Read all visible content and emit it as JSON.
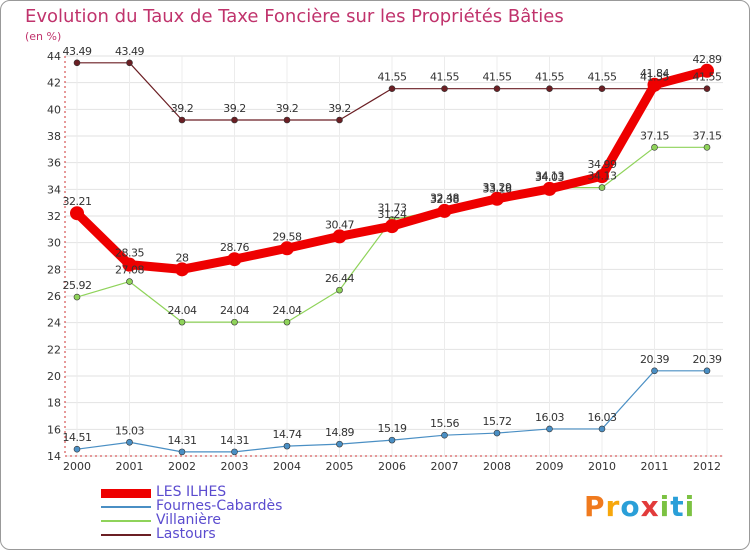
{
  "title": "Evolution du Taux de Taxe Foncière sur les Propriétés Bâties",
  "unit": "(en %)",
  "logo": {
    "letters": [
      "P",
      "r",
      "o",
      "x",
      "i",
      "t",
      "i"
    ],
    "colors": [
      "#f07a1e",
      "#f7a70c",
      "#2a9fd8",
      "#e23b3b",
      "#7cc242",
      "#2a9fd8",
      "#7cc242"
    ]
  },
  "chart_data": {
    "type": "line",
    "title": "Evolution du Taux de Taxe Foncière sur les Propriétés Bâties",
    "ylabel": "(en %)",
    "xlabel": "",
    "ylim": [
      14,
      44
    ],
    "yticks": [
      14,
      16,
      18,
      20,
      22,
      24,
      26,
      28,
      30,
      32,
      34,
      36,
      38,
      40,
      42,
      44
    ],
    "categories": [
      "2000",
      "2001",
      "2002",
      "2003",
      "2004",
      "2005",
      "2006",
      "2007",
      "2008",
      "2009",
      "2010",
      "2011",
      "2012"
    ],
    "series": [
      {
        "name": "Lastours",
        "color": "#6b1f24",
        "labels": [
          "43.49",
          "43.49",
          "39.2",
          "39.2",
          "39.2",
          "39.2",
          "41.55",
          "41.55",
          "41.55",
          "41.55",
          "41.55",
          "41.55",
          "41.55"
        ],
        "values": [
          43.49,
          43.49,
          39.2,
          39.2,
          39.2,
          39.2,
          41.55,
          41.55,
          41.55,
          41.55,
          41.55,
          41.55,
          41.55
        ]
      },
      {
        "name": "Villanière",
        "color": "#8fd35a",
        "labels": [
          "25.92",
          "27.08",
          "24.04",
          "24.04",
          "24.04",
          "26.44",
          "31.73",
          "32.48",
          "33.16",
          "34.13",
          "34.13",
          "37.15",
          "37.15"
        ],
        "values": [
          25.92,
          27.08,
          24.04,
          24.04,
          24.04,
          26.44,
          31.73,
          32.48,
          33.16,
          34.13,
          34.13,
          37.15,
          37.15
        ]
      },
      {
        "name": "Fournes-Cabardès",
        "color": "#4a8fc4",
        "labels": [
          "14.51",
          "15.03",
          "14.31",
          "14.31",
          "14.74",
          "14.89",
          "15.19",
          "15.56",
          "15.72",
          "16.03",
          "16.03",
          "20.39",
          "20.39"
        ],
        "values": [
          14.51,
          15.03,
          14.31,
          14.31,
          14.74,
          14.89,
          15.19,
          15.56,
          15.72,
          16.03,
          16.03,
          20.39,
          20.39
        ]
      },
      {
        "name": "LES ILHES",
        "color": "#ee0000",
        "labels": [
          "32.21",
          "28.35",
          "28",
          "28.76",
          "29.58",
          "30.47",
          "31.24",
          "32.38",
          "33.29",
          "34.03",
          "34.99",
          "41.84",
          "42.89"
        ],
        "values": [
          32.21,
          28.35,
          28,
          28.76,
          29.58,
          30.47,
          31.24,
          32.38,
          33.29,
          34.03,
          34.99,
          41.84,
          42.89
        ]
      }
    ],
    "legend": [
      "LES ILHES",
      "Fournes-Cabardès",
      "Villanière",
      "Lastours"
    ]
  }
}
